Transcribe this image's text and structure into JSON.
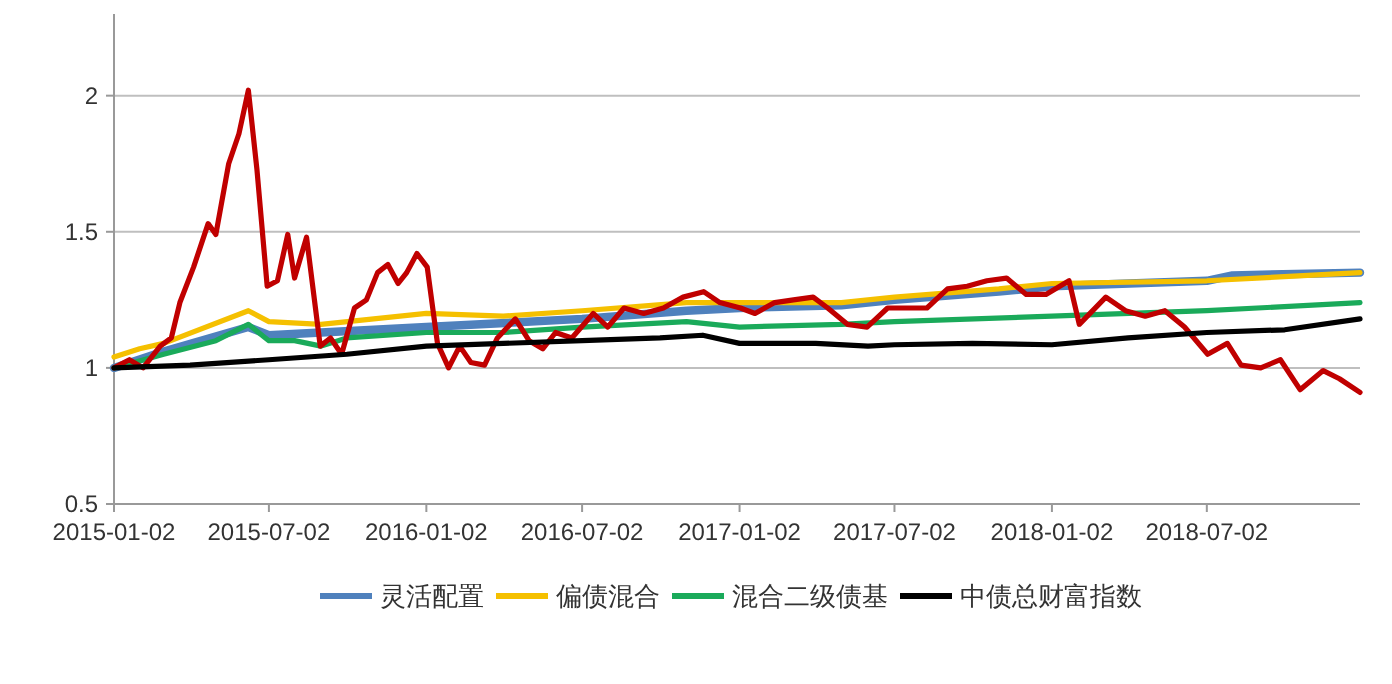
{
  "chart_data": {
    "type": "line",
    "ylim": [
      0.5,
      2.3
    ],
    "yticks": [
      0.5,
      1,
      1.5,
      2
    ],
    "xlim": [
      "2015-01-02",
      "2018-12-28"
    ],
    "xticks": [
      "2015-01-02",
      "2015-07-02",
      "2016-01-02",
      "2016-07-02",
      "2017-01-02",
      "2017-07-02",
      "2018-01-02",
      "2018-07-02"
    ],
    "grid": "y",
    "legend": "bottom",
    "line_style": "solid",
    "marker": "none",
    "series": [
      {
        "name": "灵活配置",
        "color": "#4f81bd",
        "x": [
          "2015-01-02",
          "2015-03-01",
          "2015-06-08",
          "2015-07-02",
          "2015-09-01",
          "2016-01-02",
          "2016-07-02",
          "2016-11-01",
          "2017-01-02",
          "2017-05-01",
          "2017-07-02",
          "2017-11-01",
          "2018-01-02",
          "2018-07-02",
          "2018-08-01",
          "2018-12-28"
        ],
        "values": [
          1.0,
          1.06,
          1.15,
          1.12,
          1.13,
          1.15,
          1.18,
          1.21,
          1.22,
          1.23,
          1.25,
          1.28,
          1.3,
          1.32,
          1.34,
          1.35
        ]
      },
      {
        "name": "偏债混合",
        "color": "#f5c000",
        "x": [
          "2015-01-02",
          "2015-02-01",
          "2015-03-01",
          "2015-06-08",
          "2015-07-02",
          "2015-09-01",
          "2016-01-02",
          "2016-04-01",
          "2016-07-02",
          "2016-11-01",
          "2017-01-02",
          "2017-05-01",
          "2017-07-02",
          "2017-11-01",
          "2018-01-02",
          "2018-07-02",
          "2018-12-28"
        ],
        "values": [
          1.04,
          1.07,
          1.09,
          1.21,
          1.17,
          1.16,
          1.2,
          1.19,
          1.21,
          1.24,
          1.24,
          1.24,
          1.26,
          1.29,
          1.31,
          1.32,
          1.35
        ]
      },
      {
        "name": "混合二级债基",
        "color": "#1aaa5a",
        "x": [
          "2015-01-02",
          "2015-03-01",
          "2015-05-01",
          "2015-06-08",
          "2015-07-02",
          "2015-08-01",
          "2015-09-01",
          "2015-10-01",
          "2016-01-02",
          "2016-04-01",
          "2016-07-02",
          "2016-11-01",
          "2017-01-02",
          "2017-05-01",
          "2017-07-02",
          "2018-01-02",
          "2018-07-02",
          "2018-12-28"
        ],
        "values": [
          1.0,
          1.05,
          1.1,
          1.16,
          1.1,
          1.1,
          1.08,
          1.11,
          1.13,
          1.13,
          1.15,
          1.17,
          1.15,
          1.16,
          1.17,
          1.19,
          1.21,
          1.24
        ]
      },
      {
        "color": "#c00000",
        "x": [
          "2015-01-02",
          "2015-01-20",
          "2015-02-05",
          "2015-02-25",
          "2015-03-10",
          "2015-03-20",
          "2015-04-05",
          "2015-04-22",
          "2015-05-01",
          "2015-05-16",
          "2015-05-28",
          "2015-06-08",
          "2015-06-18",
          "2015-06-30",
          "2015-07-12",
          "2015-07-24",
          "2015-08-01",
          "2015-08-15",
          "2015-08-31",
          "2015-09-12",
          "2015-09-25",
          "2015-10-10",
          "2015-10-24",
          "2015-11-06",
          "2015-11-18",
          "2015-11-30",
          "2015-12-10",
          "2015-12-22",
          "2016-01-03",
          "2016-01-15",
          "2016-01-28",
          "2016-02-10",
          "2016-02-23",
          "2016-03-10",
          "2016-03-25",
          "2016-04-15",
          "2016-05-01",
          "2016-05-17",
          "2016-06-01",
          "2016-06-20",
          "2016-07-15",
          "2016-08-01",
          "2016-08-20",
          "2016-09-12",
          "2016-10-05",
          "2016-10-28",
          "2016-11-21",
          "2016-12-10",
          "2017-01-03",
          "2017-01-20",
          "2017-02-12",
          "2017-03-06",
          "2017-03-29",
          "2017-04-15",
          "2017-05-08",
          "2017-05-31",
          "2017-06-24",
          "2017-07-17",
          "2017-08-09",
          "2017-09-02",
          "2017-09-25",
          "2017-10-18",
          "2017-11-10",
          "2017-12-03",
          "2017-12-26",
          "2018-01-22",
          "2018-02-03",
          "2018-03-06",
          "2018-03-29",
          "2018-04-21",
          "2018-05-14",
          "2018-06-06",
          "2018-07-03",
          "2018-07-26",
          "2018-08-11",
          "2018-09-03",
          "2018-09-26",
          "2018-10-19",
          "2018-11-15",
          "2018-12-04",
          "2018-12-28"
        ],
        "values": [
          1.0,
          1.03,
          1.0,
          1.08,
          1.11,
          1.24,
          1.37,
          1.53,
          1.49,
          1.75,
          1.86,
          2.02,
          1.73,
          1.3,
          1.32,
          1.49,
          1.33,
          1.48,
          1.08,
          1.11,
          1.05,
          1.22,
          1.25,
          1.35,
          1.38,
          1.31,
          1.35,
          1.42,
          1.37,
          1.09,
          1.0,
          1.08,
          1.02,
          1.01,
          1.11,
          1.18,
          1.1,
          1.07,
          1.13,
          1.11,
          1.2,
          1.15,
          1.22,
          1.2,
          1.22,
          1.26,
          1.28,
          1.24,
          1.22,
          1.2,
          1.24,
          1.25,
          1.26,
          1.22,
          1.16,
          1.15,
          1.22,
          1.22,
          1.22,
          1.29,
          1.3,
          1.32,
          1.33,
          1.27,
          1.27,
          1.32,
          1.16,
          1.26,
          1.21,
          1.19,
          1.21,
          1.15,
          1.05,
          1.09,
          1.01,
          1.0,
          1.03,
          0.92,
          0.99,
          0.96,
          0.91
        ]
      },
      {
        "name": "中债总财富指数",
        "color": "#000000",
        "x": [
          "2015-01-02",
          "2015-04-01",
          "2015-07-02",
          "2015-10-01",
          "2016-01-02",
          "2016-04-01",
          "2016-07-02",
          "2016-10-01",
          "2016-11-20",
          "2017-01-02",
          "2017-04-01",
          "2017-06-01",
          "2017-07-02",
          "2017-10-01",
          "2018-01-02",
          "2018-04-01",
          "2018-07-02",
          "2018-10-01",
          "2018-12-28"
        ],
        "values": [
          1.0,
          1.01,
          1.03,
          1.05,
          1.08,
          1.09,
          1.1,
          1.11,
          1.12,
          1.09,
          1.09,
          1.08,
          1.085,
          1.09,
          1.085,
          1.11,
          1.13,
          1.14,
          1.18
        ]
      }
    ]
  }
}
